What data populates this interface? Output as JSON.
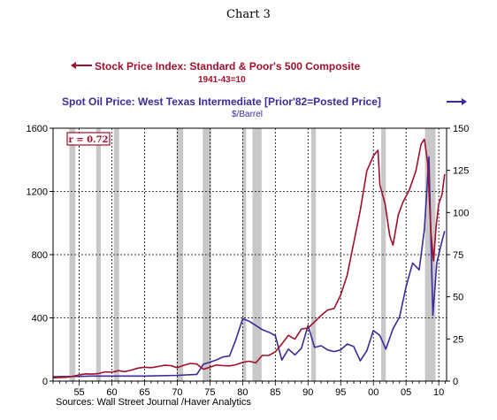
{
  "chart_data": {
    "type": "line",
    "title": "Chart 3",
    "series": [
      {
        "name": "Stock Price Index: Standard & Poor's 500 Composite",
        "sub_label": "1941-43=10",
        "axis": "left",
        "color": "#a0102a",
        "points": [
          [
            1951.0,
            21
          ],
          [
            1953.0,
            24
          ],
          [
            1954.0,
            30
          ],
          [
            1955.0,
            40
          ],
          [
            1956.0,
            46
          ],
          [
            1957.0,
            44
          ],
          [
            1958.0,
            48
          ],
          [
            1959.0,
            58
          ],
          [
            1960.0,
            56
          ],
          [
            1961.0,
            66
          ],
          [
            1962.0,
            60
          ],
          [
            1963.0,
            70
          ],
          [
            1964.0,
            82
          ],
          [
            1965.0,
            88
          ],
          [
            1966.0,
            85
          ],
          [
            1967.0,
            92
          ],
          [
            1968.0,
            100
          ],
          [
            1969.0,
            98
          ],
          [
            1970.0,
            85
          ],
          [
            1971.0,
            100
          ],
          [
            1972.0,
            112
          ],
          [
            1973.0,
            108
          ],
          [
            1974.0,
            75
          ],
          [
            1975.0,
            88
          ],
          [
            1976.0,
            102
          ],
          [
            1977.0,
            98
          ],
          [
            1978.0,
            96
          ],
          [
            1979.0,
            104
          ],
          [
            1980.0,
            118
          ],
          [
            1981.0,
            126
          ],
          [
            1982.0,
            115
          ],
          [
            1983.0,
            162
          ],
          [
            1984.0,
            162
          ],
          [
            1985.0,
            185
          ],
          [
            1986.0,
            235
          ],
          [
            1987.0,
            290
          ],
          [
            1988.0,
            265
          ],
          [
            1989.0,
            330
          ],
          [
            1990.0,
            335
          ],
          [
            1991.0,
            375
          ],
          [
            1992.0,
            415
          ],
          [
            1993.0,
            450
          ],
          [
            1994.0,
            460
          ],
          [
            1995.0,
            545
          ],
          [
            1996.0,
            670
          ],
          [
            1997.0,
            875
          ],
          [
            1998.0,
            1080
          ],
          [
            1999.0,
            1330
          ],
          [
            2000.0,
            1425
          ],
          [
            2000.7,
            1460
          ],
          [
            2001.0,
            1240
          ],
          [
            2001.8,
            1120
          ],
          [
            2002.5,
            920
          ],
          [
            2003.0,
            860
          ],
          [
            2003.8,
            1050
          ],
          [
            2004.5,
            1130
          ],
          [
            2005.5,
            1210
          ],
          [
            2006.5,
            1330
          ],
          [
            2007.3,
            1500
          ],
          [
            2007.8,
            1530
          ],
          [
            2008.3,
            1380
          ],
          [
            2008.8,
            940
          ],
          [
            2009.2,
            760
          ],
          [
            2009.6,
            980
          ],
          [
            2010.0,
            1120
          ],
          [
            2010.5,
            1180
          ],
          [
            2010.9,
            1310
          ]
        ]
      },
      {
        "name": "Spot Oil Price: West Texas Intermediate [Prior'82=Posted Price]",
        "sub_label": "$/Barrel",
        "axis": "right",
        "color": "#3a2a9a",
        "points": [
          [
            1951.0,
            2.6
          ],
          [
            1955.0,
            2.8
          ],
          [
            1957.0,
            3.0
          ],
          [
            1960.0,
            3.0
          ],
          [
            1965.0,
            3.0
          ],
          [
            1970.0,
            3.4
          ],
          [
            1973.0,
            4.0
          ],
          [
            1974.0,
            10.0
          ],
          [
            1975.0,
            11.2
          ],
          [
            1976.0,
            12.6
          ],
          [
            1977.0,
            14.3
          ],
          [
            1978.0,
            14.9
          ],
          [
            1979.0,
            25.0
          ],
          [
            1980.0,
            37.0
          ],
          [
            1981.0,
            35.5
          ],
          [
            1982.0,
            33.0
          ],
          [
            1983.0,
            30.5
          ],
          [
            1984.0,
            29.0
          ],
          [
            1985.0,
            27.0
          ],
          [
            1986.0,
            12.5
          ],
          [
            1987.0,
            19.0
          ],
          [
            1988.0,
            15.5
          ],
          [
            1989.0,
            19.5
          ],
          [
            1990.0,
            33.0
          ],
          [
            1991.0,
            20.0
          ],
          [
            1992.0,
            21.0
          ],
          [
            1993.0,
            18.5
          ],
          [
            1994.0,
            17.5
          ],
          [
            1995.0,
            18.5
          ],
          [
            1996.0,
            22.0
          ],
          [
            1997.0,
            20.5
          ],
          [
            1998.0,
            12.0
          ],
          [
            1999.0,
            18.0
          ],
          [
            2000.0,
            30.0
          ],
          [
            2001.0,
            27.0
          ],
          [
            2001.9,
            19.0
          ],
          [
            2003.0,
            31.0
          ],
          [
            2004.0,
            38.0
          ],
          [
            2005.0,
            56.0
          ],
          [
            2006.0,
            70.0
          ],
          [
            2007.0,
            66.0
          ],
          [
            2007.8,
            90.0
          ],
          [
            2008.5,
            133.0
          ],
          [
            2008.9,
            70.0
          ],
          [
            2009.1,
            39.0
          ],
          [
            2009.7,
            70.0
          ],
          [
            2010.3,
            80.0
          ],
          [
            2010.9,
            89.0
          ]
        ]
      }
    ],
    "y_left": {
      "ylim": [
        0,
        1600
      ],
      "ticks": [
        "0",
        "400",
        "800",
        "1200",
        "1600"
      ]
    },
    "y_right": {
      "ylim": [
        0,
        150
      ],
      "ticks": [
        "0",
        "25",
        "50",
        "75",
        "100",
        "125",
        "150"
      ]
    },
    "x": {
      "xlim": [
        1951,
        2011.2
      ],
      "ticks": [
        {
          "year": 1955,
          "label": "55"
        },
        {
          "year": 1960,
          "label": "60"
        },
        {
          "year": 1965,
          "label": "65"
        },
        {
          "year": 1970,
          "label": "70"
        },
        {
          "year": 1975,
          "label": "75"
        },
        {
          "year": 1980,
          "label": "80"
        },
        {
          "year": 1985,
          "label": "85"
        },
        {
          "year": 1990,
          "label": "90"
        },
        {
          "year": 1995,
          "label": "95"
        },
        {
          "year": 2000,
          "label": "00"
        },
        {
          "year": 2005,
          "label": "05"
        },
        {
          "year": 2010,
          "label": "10"
        }
      ]
    },
    "recessions": [
      [
        1953.5,
        1954.4
      ],
      [
        1957.6,
        1958.3
      ],
      [
        1960.3,
        1961.1
      ],
      [
        1969.9,
        1970.9
      ],
      [
        1973.9,
        1975.2
      ],
      [
        1980.0,
        1980.5
      ],
      [
        1981.5,
        1982.9
      ],
      [
        1990.5,
        1991.2
      ],
      [
        2001.2,
        2001.9
      ],
      [
        2007.9,
        2009.5
      ]
    ],
    "annotation": "r = 0.72",
    "source": "Sources:  Wall Street Journal /Haver Analytics",
    "grid": true
  }
}
